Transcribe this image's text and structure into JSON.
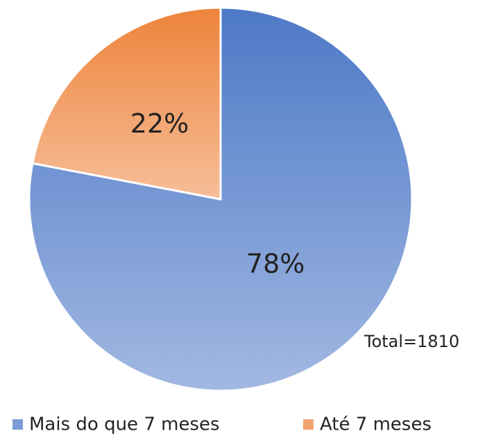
{
  "chart_data": {
    "type": "pie",
    "categories": [
      "Mais do que 7 meses",
      "Até 7 meses"
    ],
    "values": [
      78,
      22
    ],
    "value_labels": [
      "78%",
      "22%"
    ],
    "colors": [
      "#4472c4",
      "#ed7d31"
    ],
    "annotation": "Total=1810",
    "legend": "bottom"
  }
}
